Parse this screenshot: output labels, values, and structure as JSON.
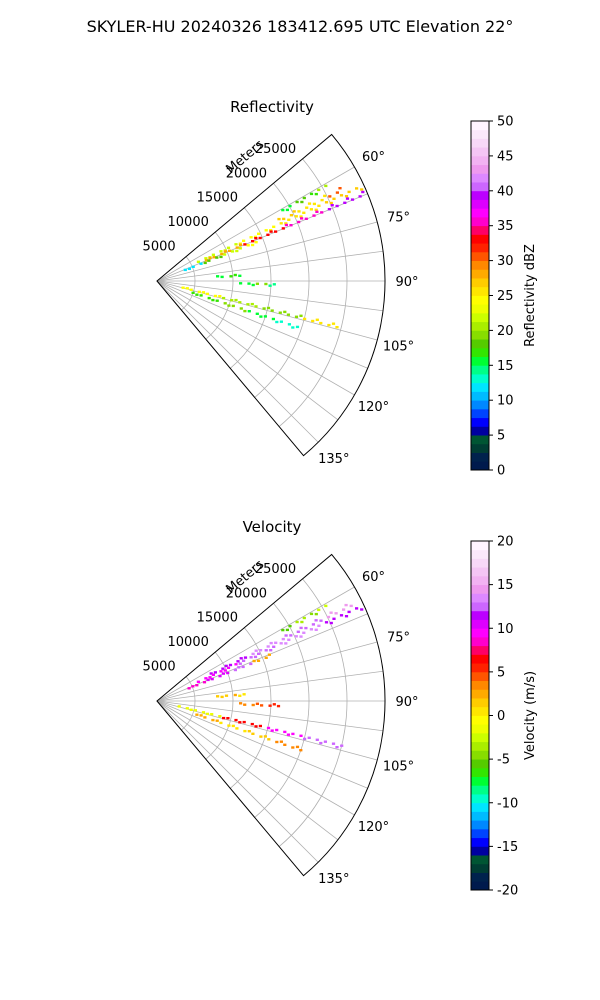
{
  "figure": {
    "title": "SKYLER-HU  20240326  183412.695 UTC Elevation 22°"
  },
  "chart_data": [
    {
      "type": "polar-sector",
      "title": "Reflectivity",
      "radial_label": "Meters",
      "r_ticks": [
        "5000",
        "10000",
        "15000",
        "20000",
        "25000"
      ],
      "r_tick_values": [
        5000,
        10000,
        15000,
        20000,
        25000
      ],
      "rmax": 30000,
      "angle_ticks": [
        "60°",
        "75°",
        "90°",
        "105°",
        "120°",
        "135°"
      ],
      "angle_tick_values": [
        60,
        75,
        90,
        105,
        120,
        135
      ],
      "theta_range": [
        50,
        140
      ],
      "theta_zero": "north",
      "theta_direction": "clockwise",
      "grid": true,
      "colorbar": {
        "label": "Reflectivity dBZ",
        "ticks": [
          "0",
          "5",
          "10",
          "15",
          "20",
          "25",
          "30",
          "35",
          "40",
          "45",
          "50"
        ],
        "tick_values": [
          0,
          5,
          10,
          15,
          20,
          25,
          30,
          35,
          40,
          45,
          50
        ],
        "vmin": 0,
        "vmax": 50,
        "colors": [
          "#001a4d",
          "#00224d",
          "#003d33",
          "#005533",
          "#0000a0",
          "#0000ff",
          "#0044ff",
          "#0088ff",
          "#00bbff",
          "#00e5ff",
          "#00ffcc",
          "#00ff88",
          "#00ff33",
          "#33e600",
          "#55cc00",
          "#88dd00",
          "#aaee00",
          "#ccff00",
          "#eeff00",
          "#ffff00",
          "#ffe600",
          "#ffcc00",
          "#ffaa00",
          "#ff8800",
          "#ff5500",
          "#ff2200",
          "#ff0000",
          "#ff0066",
          "#ff00cc",
          "#ff00ff",
          "#dd00ff",
          "#bb00ff",
          "#cc66ff",
          "#dd88ff",
          "#ee99ee",
          "#f2b2f2",
          "#f5c5f5",
          "#f8d8f8",
          "#fbe8fb",
          "#fff4ff"
        ]
      },
      "series": [
        {
          "theta": 61,
          "r_range": [
            19000,
            25500
          ],
          "values": [
            16,
            18,
            17,
            20
          ]
        },
        {
          "theta": 63.5,
          "r_range": [
            18000,
            27000
          ],
          "values": [
            27,
            25,
            26,
            31
          ]
        },
        {
          "theta": 65.5,
          "r_range": [
            6000,
            29500
          ],
          "values": [
            22,
            24,
            26,
            27
          ]
        },
        {
          "theta": 67,
          "r_range": [
            6500,
            29500
          ],
          "values": [
            28,
            33,
            36,
            39
          ]
        },
        {
          "theta": 69,
          "r_range": [
            4000,
            14000
          ],
          "values": [
            12,
            18,
            22,
            24
          ]
        },
        {
          "theta": 86,
          "r_range": [
            8000,
            11500
          ],
          "values": [
            16,
            17,
            15
          ]
        },
        {
          "theta": 92,
          "r_range": [
            11000,
            16000
          ],
          "values": [
            16,
            19,
            14
          ]
        },
        {
          "theta": 104,
          "r_range": [
            3000,
            25000
          ],
          "values": [
            24,
            21,
            19,
            26
          ]
        },
        {
          "theta": 108.5,
          "r_range": [
            5000,
            20000
          ],
          "values": [
            17,
            19,
            15,
            13
          ]
        }
      ]
    },
    {
      "type": "polar-sector",
      "title": "Velocity",
      "radial_label": "Meters",
      "r_ticks": [
        "5000",
        "10000",
        "15000",
        "20000",
        "25000"
      ],
      "r_tick_values": [
        5000,
        10000,
        15000,
        20000,
        25000
      ],
      "rmax": 30000,
      "angle_ticks": [
        "60°",
        "75°",
        "90°",
        "105°",
        "120°",
        "135°"
      ],
      "angle_tick_values": [
        60,
        75,
        90,
        105,
        120,
        135
      ],
      "theta_range": [
        50,
        140
      ],
      "theta_zero": "north",
      "theta_direction": "clockwise",
      "grid": true,
      "colorbar": {
        "label": "Velocity (m/s)",
        "ticks": [
          "-20",
          "-15",
          "-10",
          "-5",
          "0",
          "5",
          "10",
          "15",
          "20"
        ],
        "tick_values": [
          -20,
          -15,
          -10,
          -5,
          0,
          5,
          10,
          15,
          20
        ],
        "vmin": -20,
        "vmax": 20,
        "colors": [
          "#001a4d",
          "#00224d",
          "#003d33",
          "#005533",
          "#0000a0",
          "#0000ff",
          "#0044ff",
          "#0088ff",
          "#00bbff",
          "#00e5ff",
          "#00ffcc",
          "#00ff88",
          "#00ff33",
          "#33e600",
          "#55cc00",
          "#88dd00",
          "#aaee00",
          "#ccff00",
          "#eeff00",
          "#ffff00",
          "#ffe600",
          "#ffcc00",
          "#ffaa00",
          "#ff8800",
          "#ff5500",
          "#ff2200",
          "#ff0000",
          "#ff0066",
          "#ff00cc",
          "#ff00ff",
          "#dd00ff",
          "#bb00ff",
          "#cc66ff",
          "#dd88ff",
          "#ee99ee",
          "#f2b2f2",
          "#f5c5f5",
          "#f8d8f8",
          "#fbe8fb",
          "#fff4ff"
        ]
      },
      "series": [
        {
          "theta": 61,
          "r_range": [
            19000,
            25500
          ],
          "values": [
            -6,
            -4,
            -5,
            -3
          ]
        },
        {
          "theta": 63.5,
          "r_range": [
            8000,
            29000
          ],
          "values": [
            11,
            13,
            12,
            14
          ]
        },
        {
          "theta": 65.5,
          "r_range": [
            6000,
            29500
          ],
          "values": [
            9,
            12,
            13,
            11
          ]
        },
        {
          "theta": 68,
          "r_range": [
            4000,
            16000
          ],
          "values": [
            8,
            10,
            12,
            2
          ]
        },
        {
          "theta": 86,
          "r_range": [
            8000,
            11500
          ],
          "values": [
            1,
            2,
            0
          ]
        },
        {
          "theta": 92,
          "r_range": [
            11000,
            16000
          ],
          "values": [
            3,
            4,
            5
          ]
        },
        {
          "theta": 104,
          "r_range": [
            3000,
            25000
          ],
          "values": [
            -2,
            6,
            9,
            12
          ]
        },
        {
          "theta": 108.5,
          "r_range": [
            5000,
            20000
          ],
          "values": [
            2,
            0,
            1,
            3
          ]
        }
      ]
    }
  ]
}
